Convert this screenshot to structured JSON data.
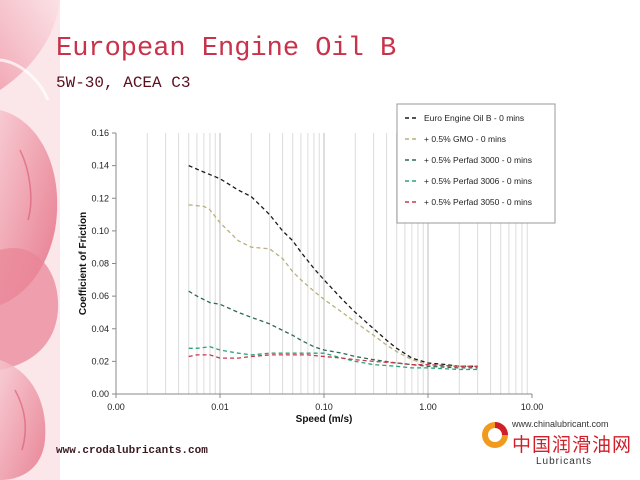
{
  "slide": {
    "title": "European Engine Oil B",
    "subtitle": "5W-30, ACEA C3",
    "footer_url": "www.crodalubricants.com"
  },
  "brand": {
    "url": "www.chinalubricant.com",
    "name": "中国润滑油网",
    "sub": "Lubricants",
    "color": "#d01f2a"
  },
  "chart_data": {
    "type": "line",
    "xscale": "log",
    "xlabel": "Speed (m/s)",
    "ylabel": "Coefficient of Friction",
    "xlim": [
      0.001,
      10
    ],
    "ylim": [
      0,
      0.16
    ],
    "xticks": [
      0.001,
      0.01,
      0.1,
      1,
      10
    ],
    "xtick_labels": [
      "0.00",
      "0.01",
      "0.10",
      "1.00",
      "10.00"
    ],
    "yticks": [
      0,
      0.02,
      0.04,
      0.06,
      0.08,
      0.1,
      0.12,
      0.14,
      0.16
    ],
    "ytick_labels": [
      "0.00",
      "0.02",
      "0.04",
      "0.06",
      "0.08",
      "0.10",
      "0.12",
      "0.14",
      "0.16"
    ],
    "grid": "log-vertical-minor",
    "legend_position": "top-right",
    "series": [
      {
        "name": "Euro Engine Oil B - 0 mins",
        "color": "#1a1a1a",
        "x": [
          0.005,
          0.007,
          0.01,
          0.015,
          0.02,
          0.03,
          0.04,
          0.05,
          0.06,
          0.08,
          0.1,
          0.15,
          0.2,
          0.3,
          0.4,
          0.5,
          0.7,
          1,
          1.5,
          2,
          3
        ],
        "y": [
          0.14,
          0.136,
          0.132,
          0.125,
          0.121,
          0.11,
          0.1,
          0.094,
          0.087,
          0.077,
          0.07,
          0.058,
          0.05,
          0.04,
          0.033,
          0.028,
          0.022,
          0.019,
          0.018,
          0.017,
          0.017
        ]
      },
      {
        "name": "+ 0.5% GMO - 0 mins",
        "color": "#b7b17a",
        "x": [
          0.005,
          0.007,
          0.008,
          0.01,
          0.015,
          0.02,
          0.03,
          0.04,
          0.05,
          0.06,
          0.08,
          0.1,
          0.15,
          0.2,
          0.3,
          0.4,
          0.5,
          0.7,
          1,
          1.5,
          2,
          3
        ],
        "y": [
          0.116,
          0.115,
          0.113,
          0.105,
          0.094,
          0.09,
          0.089,
          0.083,
          0.075,
          0.07,
          0.063,
          0.058,
          0.05,
          0.044,
          0.036,
          0.03,
          0.026,
          0.021,
          0.018,
          0.017,
          0.017,
          0.016
        ]
      },
      {
        "name": "+ 0.5% Perfad 3000 - 0 mins",
        "color": "#2e6a58",
        "x": [
          0.005,
          0.006,
          0.008,
          0.01,
          0.015,
          0.02,
          0.03,
          0.04,
          0.05,
          0.06,
          0.08,
          0.1,
          0.15,
          0.2,
          0.3,
          0.5,
          0.7,
          1,
          2,
          3
        ],
        "y": [
          0.063,
          0.06,
          0.056,
          0.055,
          0.05,
          0.047,
          0.043,
          0.039,
          0.036,
          0.033,
          0.029,
          0.027,
          0.025,
          0.023,
          0.021,
          0.019,
          0.018,
          0.017,
          0.016,
          0.016
        ]
      },
      {
        "name": "+ 0.5% Perfad 3006 - 0 mins",
        "color": "#2aa37b",
        "x": [
          0.005,
          0.006,
          0.008,
          0.01,
          0.015,
          0.02,
          0.03,
          0.05,
          0.07,
          0.1,
          0.15,
          0.2,
          0.3,
          0.5,
          0.7,
          1,
          2,
          3
        ],
        "y": [
          0.028,
          0.028,
          0.029,
          0.027,
          0.025,
          0.024,
          0.025,
          0.025,
          0.025,
          0.025,
          0.022,
          0.02,
          0.018,
          0.017,
          0.016,
          0.016,
          0.015,
          0.015
        ]
      },
      {
        "name": "+ 0.5% Perfad 3050 - 0 mins",
        "color": "#c7384c",
        "x": [
          0.005,
          0.006,
          0.008,
          0.01,
          0.015,
          0.02,
          0.03,
          0.05,
          0.07,
          0.1,
          0.15,
          0.2,
          0.3,
          0.5,
          0.7,
          1,
          2,
          3
        ],
        "y": [
          0.023,
          0.024,
          0.024,
          0.022,
          0.022,
          0.023,
          0.024,
          0.024,
          0.024,
          0.023,
          0.022,
          0.021,
          0.02,
          0.019,
          0.018,
          0.018,
          0.017,
          0.017
        ]
      }
    ]
  }
}
